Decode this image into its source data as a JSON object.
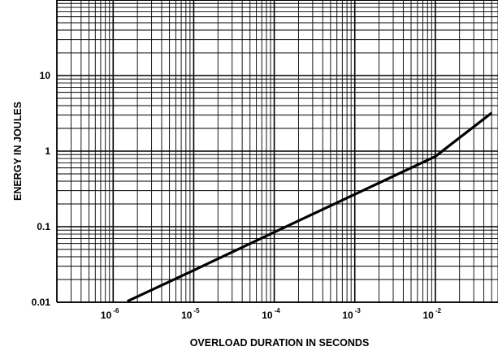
{
  "chart_data": {
    "type": "line",
    "title": "",
    "xlabel": "OVERLOAD DURATION IN SECONDS",
    "ylabel": "ENERGY IN JOULES",
    "xscale": "log",
    "yscale": "log",
    "xlim": [
      2e-07,
      0.06
    ],
    "ylim": [
      0.01,
      100
    ],
    "grid": true,
    "x_ticks": [
      {
        "base": "10",
        "exp": "-6",
        "value": 1e-06
      },
      {
        "base": "10",
        "exp": "-5",
        "value": 1e-05
      },
      {
        "base": "10",
        "exp": "-4",
        "value": 0.0001
      },
      {
        "base": "10",
        "exp": "-3",
        "value": 0.001
      },
      {
        "base": "10",
        "exp": "-2",
        "value": 0.01
      }
    ],
    "y_ticks": [
      {
        "label": "0.01",
        "value": 0.01
      },
      {
        "label": "0.1",
        "value": 0.1
      },
      {
        "label": "1",
        "value": 1
      },
      {
        "label": "10",
        "value": 10
      }
    ],
    "series": [
      {
        "x": [
          1.5e-06,
          1e-05,
          0.0001,
          0.001,
          0.01,
          0.05
        ],
        "y": [
          0.0103,
          0.0265,
          0.0845,
          0.268,
          0.85,
          3.2
        ]
      }
    ]
  }
}
